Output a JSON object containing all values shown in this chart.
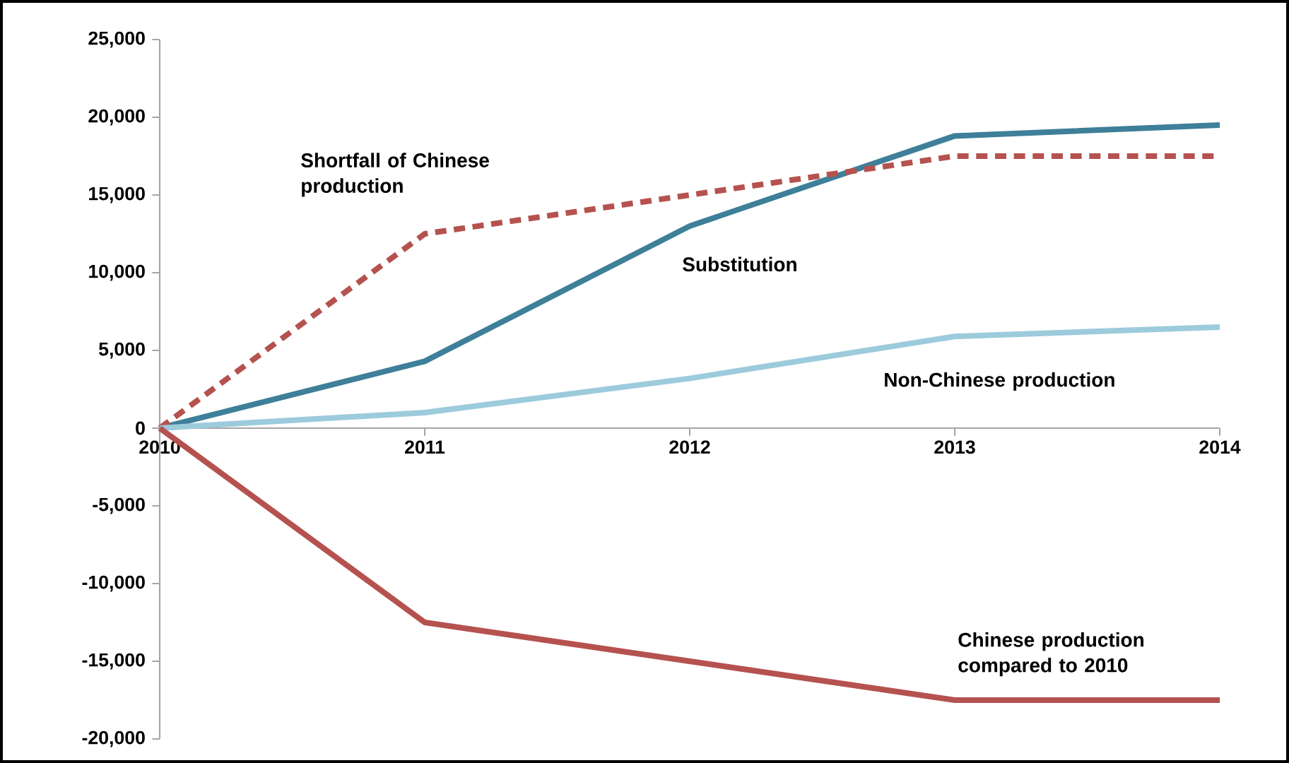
{
  "chart_data": {
    "type": "line",
    "x": [
      2010,
      2011,
      2012,
      2013,
      2014
    ],
    "series": [
      {
        "name": "Substitution",
        "color": "#3e7f99",
        "values": [
          0,
          4300,
          13000,
          18800,
          19500
        ]
      },
      {
        "name": "Shortfall of Chinese production",
        "color": "#b5524f",
        "line_style": "dashed",
        "values": [
          0,
          12500,
          15000,
          17500,
          17500
        ]
      },
      {
        "name": "Non-Chinese production",
        "color": "#9ccbdc",
        "values": [
          0,
          1000,
          3200,
          5900,
          6500
        ]
      },
      {
        "name": "Chinese production compared to 2010",
        "color": "#b5524f",
        "values": [
          0,
          -12500,
          -15000,
          -17500,
          -17500
        ]
      }
    ],
    "xlim": [
      2010,
      2014
    ],
    "xticks": [
      2010,
      2011,
      2012,
      2013,
      2014
    ],
    "ylim": [
      -20000,
      25000
    ],
    "yticks": [
      {
        "value": -20000,
        "label": "-20,000"
      },
      {
        "value": -15000,
        "label": "-15,000"
      },
      {
        "value": -10000,
        "label": "-10,000"
      },
      {
        "value": -5000,
        "label": "-5,000"
      },
      {
        "value": 0,
        "label": "0"
      },
      {
        "value": 5000,
        "label": "5,000"
      },
      {
        "value": 10000,
        "label": "10,000"
      },
      {
        "value": 15000,
        "label": "15,000"
      },
      {
        "value": 20000,
        "label": "20,000"
      },
      {
        "value": 25000,
        "label": "25,000"
      }
    ],
    "grid": false,
    "legend": false,
    "marker": "none",
    "line_style": "solid"
  }
}
